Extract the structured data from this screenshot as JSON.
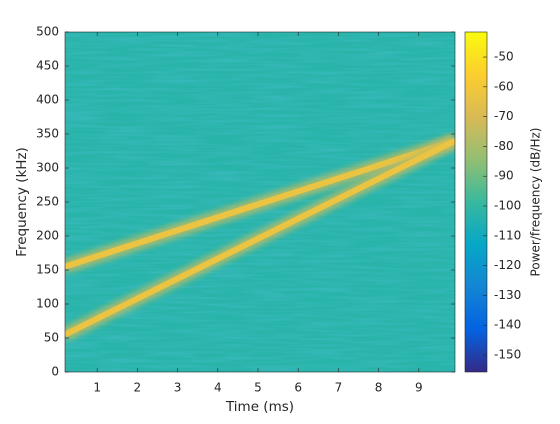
{
  "chart_data": {
    "type": "spectrogram",
    "xlabel": "Time (ms)",
    "ylabel": "Frequency (kHz)",
    "colorbar_label": "Power/frequency (dB/Hz)",
    "xlim": [
      0.2,
      9.9
    ],
    "ylim": [
      0,
      500
    ],
    "xticks": [
      1,
      2,
      3,
      4,
      5,
      6,
      7,
      8,
      9
    ],
    "yticks": [
      0,
      50,
      100,
      150,
      200,
      250,
      300,
      350,
      400,
      450,
      500
    ],
    "clim": [
      -155.7,
      -41.6
    ],
    "cticks": [
      -150,
      -140,
      -130,
      -120,
      -110,
      -100,
      -90,
      -80,
      -70,
      -60,
      -50
    ],
    "colormap": "parula",
    "background_level": -103,
    "x": [
      0.2,
      9.9
    ],
    "series": [
      {
        "values": [
          155,
          340
        ],
        "level": -63
      },
      {
        "values": [
          55,
          340
        ],
        "level": -63
      }
    ]
  }
}
